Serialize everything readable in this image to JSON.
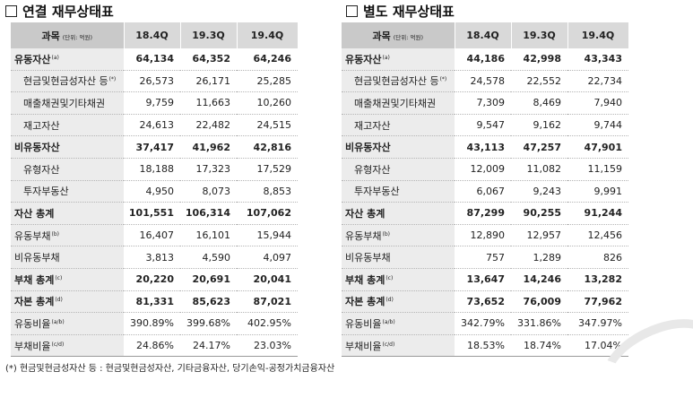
{
  "left": {
    "title": "연결 재무상태표",
    "header": {
      "label": "과목",
      "unit": "(단위: 억원)",
      "cols": [
        "18.4Q",
        "19.3Q",
        "19.4Q"
      ]
    },
    "rows": [
      {
        "label": "유동자산",
        "sup": "(a)",
        "bold": true,
        "values": [
          "64,134",
          "64,352",
          "64,246"
        ]
      },
      {
        "label": "현금및현금성자산 등",
        "sup": "(*)",
        "indent": true,
        "values": [
          "26,573",
          "26,171",
          "25,285"
        ]
      },
      {
        "label": "매출채권및기타채권",
        "sup": "",
        "indent": true,
        "values": [
          "9,759",
          "11,663",
          "10,260"
        ]
      },
      {
        "label": "재고자산",
        "sup": "",
        "indent": true,
        "values": [
          "24,613",
          "22,482",
          "24,515"
        ]
      },
      {
        "label": "비유동자산",
        "sup": "",
        "bold": true,
        "values": [
          "37,417",
          "41,962",
          "42,816"
        ]
      },
      {
        "label": "유형자산",
        "sup": "",
        "indent": true,
        "values": [
          "18,188",
          "17,323",
          "17,529"
        ]
      },
      {
        "label": "투자부동산",
        "sup": "",
        "indent": true,
        "values": [
          "4,950",
          "8,073",
          "8,853"
        ]
      },
      {
        "label": "자산 총계",
        "sup": "",
        "bold": true,
        "values": [
          "101,551",
          "106,314",
          "107,062"
        ]
      },
      {
        "label": "유동부채",
        "sup": "(b)",
        "values": [
          "16,407",
          "16,101",
          "15,944"
        ]
      },
      {
        "label": "비유동부채",
        "sup": "",
        "values": [
          "3,813",
          "4,590",
          "4,097"
        ]
      },
      {
        "label": "부채 총계",
        "sup": "(c)",
        "bold": true,
        "values": [
          "20,220",
          "20,691",
          "20,041"
        ]
      },
      {
        "label": "자본 총계",
        "sup": "(d)",
        "bold": true,
        "values": [
          "81,331",
          "85,623",
          "87,021"
        ]
      },
      {
        "label": "유동비율",
        "sup": "(a/b)",
        "values": [
          "390.89%",
          "399.68%",
          "402.95%"
        ]
      },
      {
        "label": "부채비율",
        "sup": "(c/d)",
        "values": [
          "24.86%",
          "24.17%",
          "23.03%"
        ]
      }
    ]
  },
  "right": {
    "title": "별도 재무상태표",
    "header": {
      "label": "과목",
      "unit": "(단위: 억원)",
      "cols": [
        "18.4Q",
        "19.3Q",
        "19.4Q"
      ]
    },
    "rows": [
      {
        "label": "유동자산",
        "sup": "(a)",
        "bold": true,
        "values": [
          "44,186",
          "42,998",
          "43,343"
        ]
      },
      {
        "label": "현금및현금성자산 등",
        "sup": "(*)",
        "indent": true,
        "values": [
          "24,578",
          "22,552",
          "22,734"
        ]
      },
      {
        "label": "매출채권및기타채권",
        "sup": "",
        "indent": true,
        "values": [
          "7,309",
          "8,469",
          "7,940"
        ]
      },
      {
        "label": "재고자산",
        "sup": "",
        "indent": true,
        "values": [
          "9,547",
          "9,162",
          "9,744"
        ]
      },
      {
        "label": "비유동자산",
        "sup": "",
        "bold": true,
        "values": [
          "43,113",
          "47,257",
          "47,901"
        ]
      },
      {
        "label": "유형자산",
        "sup": "",
        "indent": true,
        "values": [
          "12,009",
          "11,082",
          "11,159"
        ]
      },
      {
        "label": "투자부동산",
        "sup": "",
        "indent": true,
        "values": [
          "6,067",
          "9,243",
          "9,991"
        ]
      },
      {
        "label": "자산 총계",
        "sup": "",
        "bold": true,
        "values": [
          "87,299",
          "90,255",
          "91,244"
        ]
      },
      {
        "label": "유동부채",
        "sup": "(b)",
        "values": [
          "12,890",
          "12,957",
          "12,456"
        ]
      },
      {
        "label": "비유동부채",
        "sup": "",
        "values": [
          "757",
          "1,289",
          "826"
        ]
      },
      {
        "label": "부채 총계",
        "sup": "(c)",
        "bold": true,
        "values": [
          "13,647",
          "14,246",
          "13,282"
        ]
      },
      {
        "label": "자본 총계",
        "sup": "(d)",
        "bold": true,
        "values": [
          "73,652",
          "76,009",
          "77,962"
        ]
      },
      {
        "label": "유동비율",
        "sup": "(a/b)",
        "values": [
          "342.79%",
          "331.86%",
          "347.97%"
        ]
      },
      {
        "label": "부채비율",
        "sup": "(c/d)",
        "values": [
          "18.53%",
          "18.74%",
          "17.04%"
        ]
      }
    ]
  },
  "footnote": "(*) 현금및현금성자산 등 : 현금및현금성자산, 기타금융자산, 당기손익-공정가치금융자산"
}
